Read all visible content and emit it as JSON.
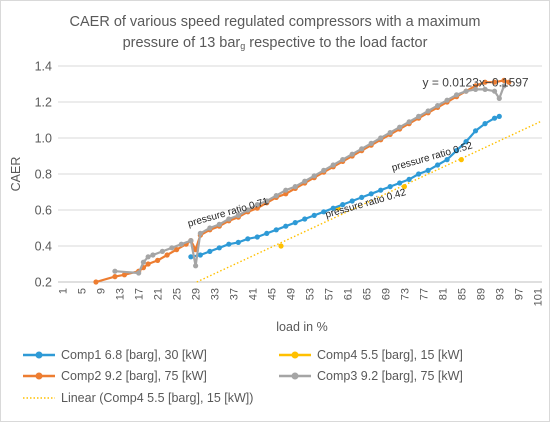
{
  "chart_data": {
    "type": "line",
    "title_main": "CAER of various speed regulated compressors with a maximum",
    "title_pre": "pressure of 13 bar",
    "title_sub": "g",
    "title_post": " respective to the load factor",
    "xlabel": "load in %",
    "ylabel": "CAER",
    "xlim": [
      0,
      102
    ],
    "ylim": [
      0.2,
      1.4
    ],
    "x_ticks": [
      "1",
      "5",
      "9",
      "13",
      "17",
      "21",
      "25",
      "29",
      "33",
      "37",
      "41",
      "45",
      "49",
      "53",
      "57",
      "61",
      "65",
      "69",
      "73",
      "77",
      "81",
      "85",
      "89",
      "93",
      "97",
      "101"
    ],
    "y_ticks": [
      "0.2",
      "0.4",
      "0.6",
      "0.8",
      "1.0",
      "1.2",
      "1.4"
    ],
    "grid": "horizontal",
    "legend_position": "bottom",
    "series": [
      {
        "name": "Comp1 6.8 [barg], 30 [kW]",
        "color": "#2e9ad6",
        "style": "line-markers",
        "x": [
          28,
          30,
          32,
          34,
          36,
          38,
          40,
          42,
          44,
          46,
          48,
          50,
          52,
          54,
          56,
          58,
          60,
          62,
          64,
          66,
          68,
          70,
          72,
          74,
          76,
          78,
          80,
          82,
          84,
          86,
          88,
          90,
          92,
          93
        ],
        "y": [
          0.34,
          0.35,
          0.37,
          0.39,
          0.41,
          0.42,
          0.44,
          0.45,
          0.47,
          0.49,
          0.51,
          0.53,
          0.55,
          0.57,
          0.59,
          0.61,
          0.63,
          0.65,
          0.67,
          0.69,
          0.71,
          0.73,
          0.75,
          0.77,
          0.8,
          0.82,
          0.85,
          0.88,
          0.93,
          0.98,
          1.04,
          1.08,
          1.11,
          1.12
        ]
      },
      {
        "name": "Comp4 5.5 [barg], 15 [kW]",
        "color": "#ffc000",
        "style": "markers",
        "x": [
          47,
          59,
          73,
          85
        ],
        "y": [
          0.4,
          0.61,
          0.73,
          0.88
        ]
      },
      {
        "name": "Comp2 9.2 [barg], 75 [kW]",
        "color": "#ed7d31",
        "style": "line-markers",
        "x": [
          8,
          12,
          14,
          17,
          18,
          19,
          21,
          23,
          25,
          27,
          28,
          29,
          30,
          32,
          34,
          36,
          38,
          40,
          42,
          44,
          46,
          48,
          50,
          52,
          54,
          56,
          58,
          60,
          62,
          64,
          66,
          68,
          70,
          72,
          74,
          76,
          78,
          80,
          82,
          84,
          86,
          88,
          90,
          92,
          94,
          95
        ],
        "y": [
          0.2,
          0.23,
          0.24,
          0.26,
          0.28,
          0.3,
          0.32,
          0.35,
          0.38,
          0.41,
          0.43,
          0.38,
          0.46,
          0.49,
          0.51,
          0.54,
          0.56,
          0.59,
          0.61,
          0.64,
          0.67,
          0.69,
          0.72,
          0.75,
          0.78,
          0.81,
          0.84,
          0.87,
          0.9,
          0.93,
          0.96,
          0.99,
          1.02,
          1.05,
          1.08,
          1.11,
          1.14,
          1.17,
          1.2,
          1.23,
          1.26,
          1.29,
          1.31,
          1.31,
          1.32,
          1.31
        ]
      },
      {
        "name": "Comp3 9.2 [barg], 75 [kW]",
        "color": "#a5a5a5",
        "style": "line-markers",
        "x": [
          12,
          17,
          18,
          19,
          20,
          22,
          24,
          26,
          28,
          29,
          30,
          32,
          34,
          36,
          38,
          40,
          42,
          44,
          46,
          48,
          50,
          52,
          54,
          56,
          58,
          60,
          62,
          64,
          66,
          68,
          70,
          72,
          74,
          76,
          78,
          80,
          82,
          84,
          86,
          88,
          90,
          92,
          93,
          94
        ],
        "y": [
          0.26,
          0.25,
          0.31,
          0.34,
          0.35,
          0.37,
          0.39,
          0.41,
          0.43,
          0.29,
          0.47,
          0.5,
          0.52,
          0.55,
          0.57,
          0.6,
          0.63,
          0.65,
          0.68,
          0.71,
          0.73,
          0.76,
          0.79,
          0.82,
          0.85,
          0.88,
          0.91,
          0.94,
          0.97,
          1.0,
          1.03,
          1.06,
          1.09,
          1.12,
          1.15,
          1.18,
          1.21,
          1.24,
          1.26,
          1.27,
          1.27,
          1.26,
          1.22,
          1.29
        ]
      },
      {
        "name": "Linear (Comp4 5.5 [barg], 15 [kW])",
        "color": "#ffc000",
        "style": "dotted-trendline",
        "slope": 0.0123,
        "intercept": -0.1597
      }
    ],
    "annotations": [
      {
        "text": "y = 0.0123x−0.1597",
        "x": 88,
        "y": 1.285
      },
      {
        "text": "pressure ratio 0.71",
        "x": 36,
        "y": 0.57
      },
      {
        "text": "pressure ratio 0.52",
        "x": 79,
        "y": 0.88
      },
      {
        "text": "pressure ratio 0.42",
        "x": 65,
        "y": 0.62
      }
    ]
  }
}
